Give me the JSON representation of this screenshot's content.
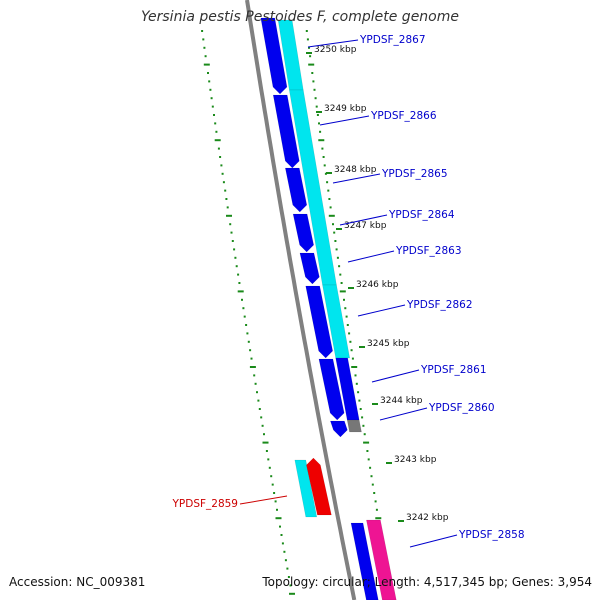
{
  "title": "Yersinia pestis Pestoides F, complete genome",
  "footer": {
    "accession": "Accession: NC_009381",
    "topology": "Topology: circular; Length: 4,517,345 bp; Genes: 3,954"
  },
  "colors": {
    "backbone": "#808080",
    "tick": "#1a8a1a",
    "forward_cds": "#0000ee",
    "forward_feature": "#00e5ee",
    "reverse_cds": "#ee0000",
    "reverse_feature": "#00e5ee",
    "misc": "#777777",
    "pink_feature": "#ee1493",
    "forward_label": "#0000cc",
    "reverse_label": "#cc0000"
  },
  "scale_labels": [
    "3250 kbp",
    "3249 kbp",
    "3248 kbp",
    "3247 kbp",
    "3246 kbp",
    "3245 kbp",
    "3244 kbp",
    "3243 kbp",
    "3242 kbp"
  ],
  "genes": [
    {
      "label": "YPDSF_2867",
      "strand": "forward"
    },
    {
      "label": "YPDSF_2866",
      "strand": "forward"
    },
    {
      "label": "YPDSF_2865",
      "strand": "forward"
    },
    {
      "label": "YPDSF_2864",
      "strand": "forward"
    },
    {
      "label": "YPDSF_2863",
      "strand": "forward"
    },
    {
      "label": "YPDSF_2862",
      "strand": "forward"
    },
    {
      "label": "YPDSF_2861",
      "strand": "forward"
    },
    {
      "label": "YPDSF_2860",
      "strand": "forward"
    },
    {
      "label": "YPDSF_2859",
      "strand": "reverse"
    },
    {
      "label": "YPDSF_2858",
      "strand": "forward"
    }
  ]
}
